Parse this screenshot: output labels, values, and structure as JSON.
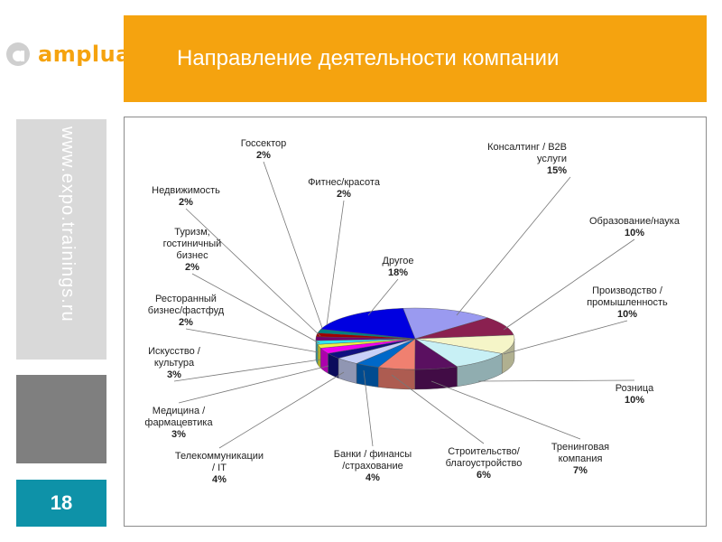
{
  "logo": {
    "text": "amplua"
  },
  "header": {
    "title": "Направление деятельности компании"
  },
  "sidebar": {
    "url": "www.expo.trainings.ru",
    "slide_number": "18"
  },
  "colors": {
    "accent": "#f5a30f",
    "teal": "#0e92a8",
    "gray_light": "#d9d9d9",
    "gray_dark": "#7f7f7f"
  },
  "chart_data": {
    "type": "pie",
    "title": "",
    "slices": [
      {
        "label": "Консалтинг / B2B услуги",
        "lines": [
          "Консалтинг / B2B",
          "услуги"
        ],
        "value": 15,
        "pct": "15%",
        "color": "#9a9af0"
      },
      {
        "label": "Образование/наука",
        "lines": [
          "Образование/наука"
        ],
        "value": 10,
        "pct": "10%",
        "color": "#8a2050"
      },
      {
        "label": "Производство / промышленность",
        "lines": [
          "Производство /",
          "промышленность"
        ],
        "value": 10,
        "pct": "10%",
        "color": "#f5f5c8"
      },
      {
        "label": "Розница",
        "lines": [
          "Розница"
        ],
        "value": 10,
        "pct": "10%",
        "color": "#c8f0f5"
      },
      {
        "label": "Тренинговая компания",
        "lines": [
          "Тренинговая",
          "компания"
        ],
        "value": 7,
        "pct": "7%",
        "color": "#5a1060"
      },
      {
        "label": "Строительство/ благоустройство",
        "lines": [
          "Строительство/",
          "благоустройство"
        ],
        "value": 6,
        "pct": "6%",
        "color": "#f08070"
      },
      {
        "label": "Банки / финансы /страхование",
        "lines": [
          "Банки / финансы",
          "/страхование"
        ],
        "value": 4,
        "pct": "4%",
        "color": "#0068c8"
      },
      {
        "label": "Телекоммуникации / IT",
        "lines": [
          "Телекоммуникации",
          "/ IT"
        ],
        "value": 4,
        "pct": "4%",
        "color": "#c8d0f8"
      },
      {
        "label": "Медицина / фармацевтика",
        "lines": [
          "Медицина /",
          "фармацевтика"
        ],
        "value": 3,
        "pct": "3%",
        "color": "#101080"
      },
      {
        "label": "Искусство / культура",
        "lines": [
          "Искусство /",
          "культура"
        ],
        "value": 3,
        "pct": "3%",
        "color": "#f000f0"
      },
      {
        "label": "Ресторанный бизнес/фастфуд",
        "lines": [
          "Ресторанный",
          "бизнес/фастфуд"
        ],
        "value": 2,
        "pct": "2%",
        "color": "#f0f040"
      },
      {
        "label": "Туризм, гостиничный бизнес",
        "lines": [
          "Туризм,",
          "гостиничный",
          "бизнес"
        ],
        "value": 2,
        "pct": "2%",
        "color": "#30e8f0"
      },
      {
        "label": "Недвижимость",
        "lines": [
          "Недвижимость"
        ],
        "value": 2,
        "pct": "2%",
        "color": "#700070"
      },
      {
        "label": "Госсектор",
        "lines": [
          "Госсектор"
        ],
        "value": 2,
        "pct": "2%",
        "color": "#a00000"
      },
      {
        "label": "Фитнес/красота",
        "lines": [
          "Фитнес/красота"
        ],
        "value": 2,
        "pct": "2%",
        "color": "#008080"
      },
      {
        "label": "Другое",
        "lines": [
          "Другое"
        ],
        "value": 18,
        "pct": "18%",
        "color": "#0000e0"
      }
    ]
  }
}
